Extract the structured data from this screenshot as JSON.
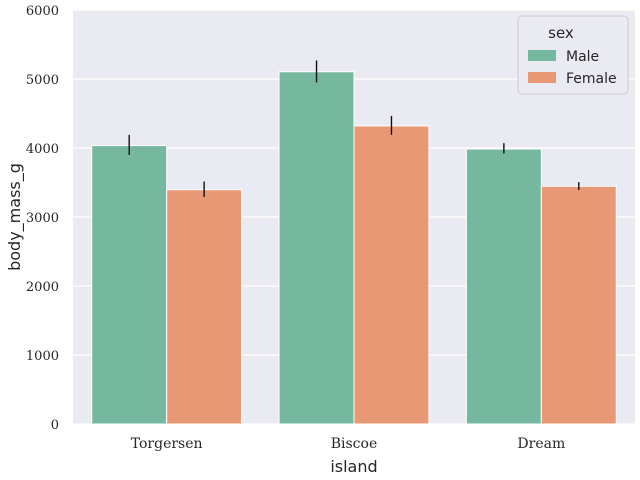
{
  "chart_data": {
    "type": "bar",
    "xlabel": "island",
    "ylabel": "body_mass_g",
    "ylim": [
      0,
      6000
    ],
    "yticks": [
      0,
      1000,
      2000,
      3000,
      4000,
      5000,
      6000
    ],
    "categories": [
      "Torgersen",
      "Biscoe",
      "Dream"
    ],
    "series": [
      {
        "name": "Male",
        "color": "#76b7a0",
        "values": [
          4035,
          5105,
          3985
        ],
        "err_low": [
          3900,
          4950,
          3920
        ],
        "err_high": [
          4190,
          5270,
          4070
        ]
      },
      {
        "name": "Female",
        "color": "#e99875",
        "values": [
          3395,
          4320,
          3445
        ],
        "err_low": [
          3290,
          4190,
          3390
        ],
        "err_high": [
          3515,
          4465,
          3505
        ]
      }
    ],
    "legend": {
      "title": "sex",
      "position": "top-right"
    },
    "grid": true,
    "background": "#eaeaf2"
  }
}
